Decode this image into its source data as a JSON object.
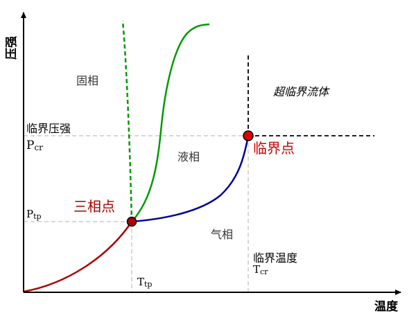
{
  "axes": {
    "y_label": "压强",
    "x_label": "温度"
  },
  "regions": {
    "solid": "固相",
    "liquid": "液相",
    "gas": "气相",
    "supercritical": "超临界流体"
  },
  "points": {
    "triple_point": "三相点",
    "critical_point": "临界点"
  },
  "marks": {
    "critical_pressure": "临界压强",
    "critical_pressure_symbol": "P",
    "critical_pressure_sub": "cr",
    "triple_pressure_symbol": "P",
    "triple_pressure_sub": "tp",
    "triple_temp_symbol": "T",
    "triple_temp_sub": "tp",
    "critical_temp": "临界温度",
    "critical_temp_symbol": "T",
    "critical_temp_sub": "cr"
  },
  "colors": {
    "sublimation_curve": "#aa0000",
    "vaporization_curve": "#000099",
    "melting_curve": "#009900",
    "point_fill": "#dd0000",
    "point_label": "#cc0000",
    "dashed_guides": "#cccccc",
    "axis": "#000000"
  }
}
